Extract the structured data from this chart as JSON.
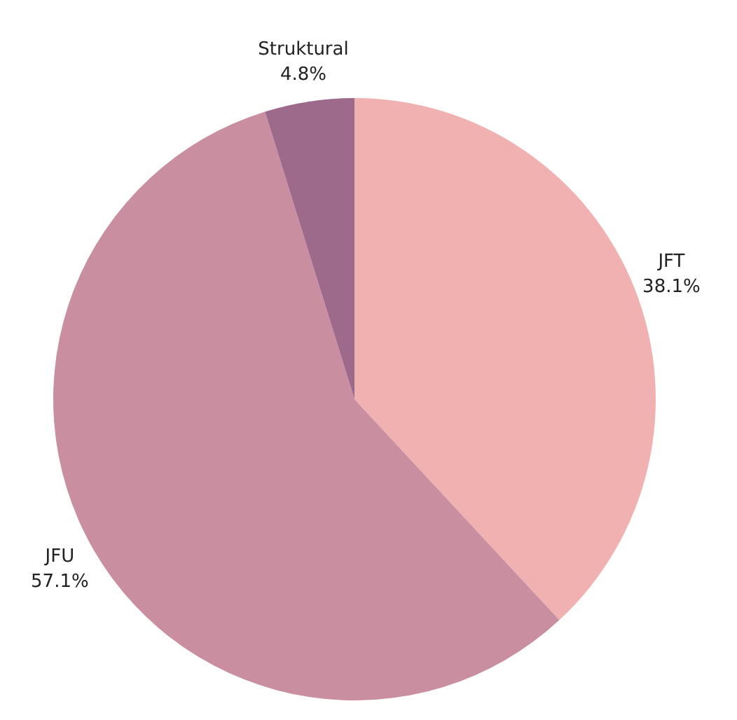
{
  "chart_data": {
    "type": "pie",
    "categories": [
      "JFT",
      "JFU",
      "Struktural"
    ],
    "values": [
      38.1,
      57.1,
      4.8
    ],
    "value_labels": [
      "38.1%",
      "57.1%",
      "4.8%"
    ],
    "colors": [
      "#f2b1b1",
      "#c98e9f",
      "#9d6a8b"
    ]
  }
}
